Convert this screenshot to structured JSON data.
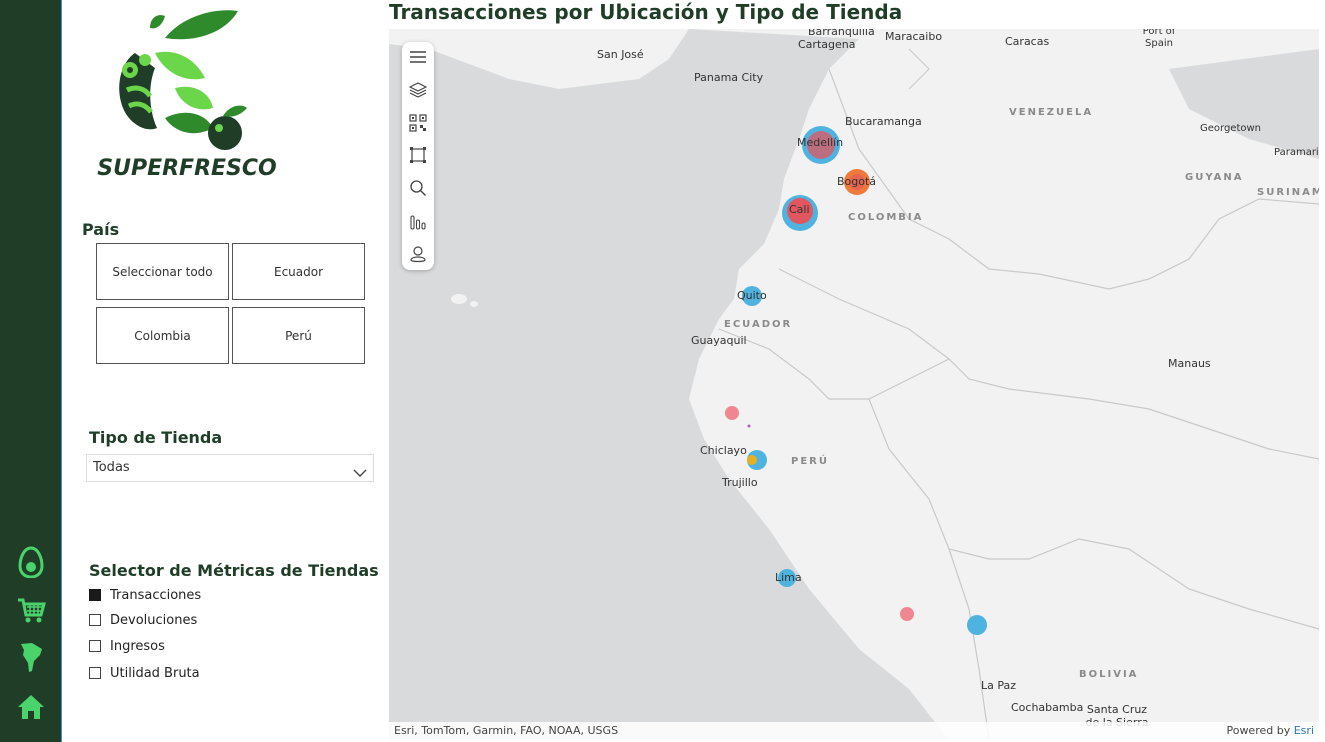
{
  "app": {
    "brand": "SUPERFRESCO"
  },
  "nav": [
    {
      "name": "avocado-icon"
    },
    {
      "name": "cart-icon"
    },
    {
      "name": "map-icon"
    },
    {
      "name": "home-icon"
    }
  ],
  "filters": {
    "country_title": "País",
    "country_tiles": [
      "Seleccionar todo",
      "Ecuador",
      "Colombia",
      "Perú"
    ],
    "store_type_title": "Tipo de Tienda",
    "store_type_value": "Todas",
    "metrics_title": "Selector de Métricas de Tiendas",
    "metrics": [
      {
        "label": "Transacciones",
        "checked": true
      },
      {
        "label": "Devoluciones",
        "checked": false
      },
      {
        "label": "Ingresos",
        "checked": false
      },
      {
        "label": "Utilidad Bruta",
        "checked": false
      }
    ]
  },
  "map": {
    "title": "Transacciones por Ubicación y Tipo de Tienda",
    "cities": [
      "Barranquilla",
      "Cartagena",
      "Maracaibo",
      "Caracas",
      "Port of Spain",
      "San José",
      "Panama City",
      "Bucaramanga",
      "Medellín",
      "Bogotá",
      "Cali",
      "Georgetown",
      "Paramaribo",
      "Quito",
      "Guayaquil",
      "Chiclayo",
      "Trujillo",
      "Lima",
      "Manaus",
      "La Paz",
      "Cochabamba",
      "Santa Cruz de la Sierra"
    ],
    "countries": [
      "VENEZUELA",
      "COLOMBIA",
      "GUYANA",
      "SURINAME",
      "ECUADOR",
      "PERÚ",
      "BOLIVIA"
    ],
    "attribution": "Esri, TomTom, Garmin, FAO, NOAA, USGS",
    "powered_by": "Powered by",
    "powered_by_brand": "Esri",
    "colors": {
      "blue": "#4fb3e0",
      "red": "#e0575f",
      "orange": "#f07a3a",
      "pink": "#f08790",
      "purple": "#b060c0",
      "yellow": "#e8b020"
    }
  }
}
